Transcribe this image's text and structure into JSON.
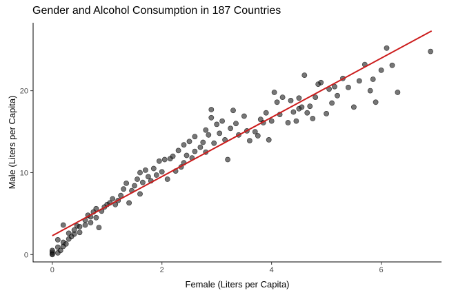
{
  "chart_data": {
    "type": "scatter",
    "title": "Gender and Alcohol Consumption in 187 Countries",
    "xlabel": "Female (Liters per Capita)",
    "ylabel": "Male (Liters per Capita)",
    "xlim": [
      -0.35,
      7.1
    ],
    "ylim": [
      -0.9,
      28.3
    ],
    "xticks": [
      0,
      2,
      4,
      6
    ],
    "yticks": [
      0,
      10,
      20
    ],
    "grid": false,
    "legend": "none",
    "colors": {
      "points": "#1a1a1a",
      "trend": "#cc1c1c"
    },
    "trend_line": {
      "x": [
        0,
        6.92
      ],
      "y": [
        2.3,
        27.3
      ]
    },
    "points": [
      [
        0.0,
        0.0
      ],
      [
        0.0,
        0.1
      ],
      [
        0.0,
        0.3
      ],
      [
        0.0,
        0.5
      ],
      [
        0.1,
        0.2
      ],
      [
        0.1,
        0.9
      ],
      [
        0.1,
        1.8
      ],
      [
        0.15,
        0.5
      ],
      [
        0.2,
        1.0
      ],
      [
        0.2,
        1.5
      ],
      [
        0.2,
        3.6
      ],
      [
        0.25,
        1.3
      ],
      [
        0.3,
        1.9
      ],
      [
        0.3,
        2.6
      ],
      [
        0.35,
        2.2
      ],
      [
        0.4,
        2.5
      ],
      [
        0.4,
        3.0
      ],
      [
        0.45,
        3.5
      ],
      [
        0.5,
        2.7
      ],
      [
        0.5,
        3.4
      ],
      [
        0.6,
        3.6
      ],
      [
        0.6,
        4.2
      ],
      [
        0.65,
        4.8
      ],
      [
        0.7,
        3.9
      ],
      [
        0.7,
        4.6
      ],
      [
        0.75,
        5.2
      ],
      [
        0.8,
        4.5
      ],
      [
        0.8,
        5.6
      ],
      [
        0.85,
        3.3
      ],
      [
        0.9,
        5.3
      ],
      [
        0.95,
        5.8
      ],
      [
        1.0,
        6.1
      ],
      [
        1.05,
        6.3
      ],
      [
        1.1,
        6.8
      ],
      [
        1.15,
        6.1
      ],
      [
        1.2,
        6.6
      ],
      [
        1.25,
        7.2
      ],
      [
        1.3,
        8.0
      ],
      [
        1.35,
        8.7
      ],
      [
        1.4,
        6.3
      ],
      [
        1.45,
        7.8
      ],
      [
        1.5,
        8.4
      ],
      [
        1.55,
        9.2
      ],
      [
        1.6,
        7.4
      ],
      [
        1.6,
        10.0
      ],
      [
        1.65,
        8.8
      ],
      [
        1.7,
        10.3
      ],
      [
        1.75,
        9.5
      ],
      [
        1.8,
        9.0
      ],
      [
        1.85,
        10.5
      ],
      [
        1.9,
        9.7
      ],
      [
        1.95,
        11.4
      ],
      [
        2.0,
        10.1
      ],
      [
        2.05,
        11.6
      ],
      [
        2.1,
        9.2
      ],
      [
        2.15,
        11.7
      ],
      [
        2.2,
        12.0
      ],
      [
        2.25,
        10.2
      ],
      [
        2.3,
        12.7
      ],
      [
        2.35,
        10.7
      ],
      [
        2.4,
        11.2
      ],
      [
        2.4,
        13.4
      ],
      [
        2.45,
        12.1
      ],
      [
        2.5,
        13.8
      ],
      [
        2.55,
        11.8
      ],
      [
        2.6,
        14.4
      ],
      [
        2.6,
        12.6
      ],
      [
        2.7,
        13.1
      ],
      [
        2.75,
        13.7
      ],
      [
        2.8,
        15.2
      ],
      [
        2.8,
        12.5
      ],
      [
        2.85,
        14.6
      ],
      [
        2.9,
        16.7
      ],
      [
        2.9,
        17.7
      ],
      [
        2.95,
        13.6
      ],
      [
        3.0,
        15.9
      ],
      [
        3.05,
        14.8
      ],
      [
        3.1,
        16.3
      ],
      [
        3.15,
        14.0
      ],
      [
        3.2,
        11.6
      ],
      [
        3.25,
        15.4
      ],
      [
        3.3,
        17.6
      ],
      [
        3.35,
        16.0
      ],
      [
        3.4,
        14.6
      ],
      [
        3.5,
        16.9
      ],
      [
        3.55,
        15.1
      ],
      [
        3.6,
        13.9
      ],
      [
        3.7,
        15.0
      ],
      [
        3.75,
        14.5
      ],
      [
        3.8,
        16.5
      ],
      [
        3.85,
        16.1
      ],
      [
        3.9,
        17.3
      ],
      [
        3.95,
        14.0
      ],
      [
        4.0,
        16.3
      ],
      [
        4.05,
        19.8
      ],
      [
        4.1,
        18.6
      ],
      [
        4.15,
        17.1
      ],
      [
        4.2,
        19.2
      ],
      [
        4.3,
        16.1
      ],
      [
        4.35,
        18.8
      ],
      [
        4.4,
        17.4
      ],
      [
        4.45,
        16.3
      ],
      [
        4.5,
        17.8
      ],
      [
        4.5,
        19.1
      ],
      [
        4.55,
        18.0
      ],
      [
        4.6,
        21.9
      ],
      [
        4.65,
        17.3
      ],
      [
        4.7,
        18.1
      ],
      [
        4.75,
        16.6
      ],
      [
        4.8,
        19.2
      ],
      [
        4.85,
        20.8
      ],
      [
        4.9,
        21.0
      ],
      [
        5.0,
        17.2
      ],
      [
        5.05,
        20.2
      ],
      [
        5.1,
        18.5
      ],
      [
        5.15,
        20.5
      ],
      [
        5.2,
        19.4
      ],
      [
        5.3,
        21.5
      ],
      [
        5.4,
        20.4
      ],
      [
        5.5,
        18.0
      ],
      [
        5.6,
        21.2
      ],
      [
        5.7,
        23.2
      ],
      [
        5.8,
        20.0
      ],
      [
        5.85,
        21.4
      ],
      [
        5.9,
        18.6
      ],
      [
        6.0,
        22.5
      ],
      [
        6.1,
        25.2
      ],
      [
        6.2,
        23.1
      ],
      [
        6.3,
        19.8
      ],
      [
        6.9,
        24.8
      ]
    ]
  }
}
